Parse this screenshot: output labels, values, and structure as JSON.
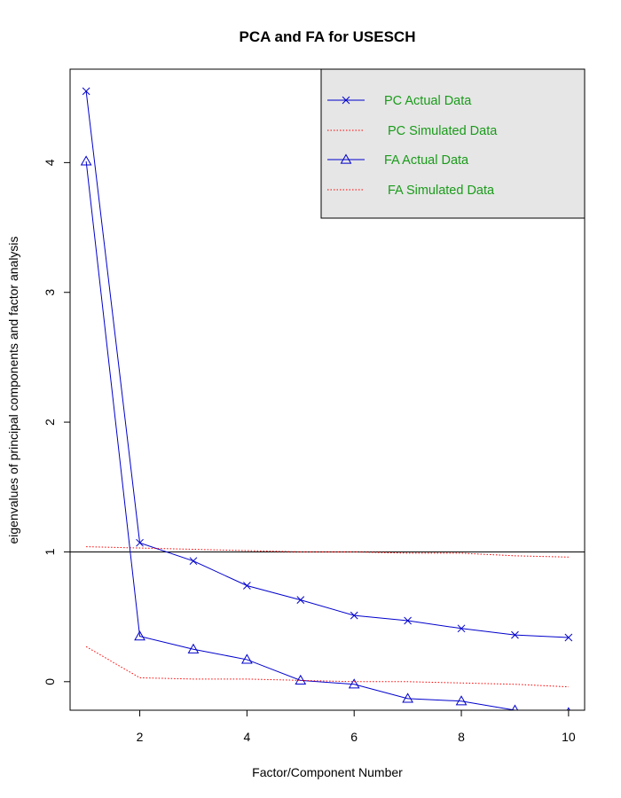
{
  "chart_data": {
    "type": "line",
    "title": "PCA and FA for USESCH",
    "xlabel": "Factor/Component Number",
    "ylabel": "eigenvalues of principal components and factor analysis",
    "xlim": [
      0.7,
      10.3
    ],
    "ylim": [
      -0.22,
      4.72
    ],
    "x_ticks": [
      "2",
      "4",
      "6",
      "8",
      "10"
    ],
    "y_ticks": [
      "0",
      "1",
      "2",
      "3",
      "4"
    ],
    "x": [
      1,
      2,
      3,
      4,
      5,
      6,
      7,
      8,
      9,
      10
    ],
    "reference_line": 1,
    "grid": false,
    "legend_position": "top-right",
    "series": [
      {
        "name": "PC  Actual Data",
        "color": "#0000cc",
        "line": "solid",
        "marker": "x",
        "values": [
          4.55,
          1.07,
          0.93,
          0.74,
          0.63,
          0.51,
          0.47,
          0.41,
          0.36,
          0.34
        ]
      },
      {
        "name": "PC  Simulated Data",
        "color": "#ff0000",
        "line": "dotted",
        "marker": "none",
        "values": [
          1.04,
          1.03,
          1.02,
          1.01,
          1.0,
          1.0,
          0.99,
          0.99,
          0.97,
          0.96
        ]
      },
      {
        "name": "FA  Actual Data",
        "color": "#0000cc",
        "line": "solid",
        "marker": "triangle",
        "values": [
          4.01,
          0.35,
          0.25,
          0.17,
          0.01,
          -0.02,
          -0.13,
          -0.15,
          -0.22,
          -0.24
        ]
      },
      {
        "name": "FA  Simulated Data",
        "color": "#ff0000",
        "line": "dotted",
        "marker": "none",
        "values": [
          0.27,
          0.03,
          0.02,
          0.02,
          0.01,
          0.0,
          0.0,
          -0.01,
          -0.02,
          -0.04
        ]
      }
    ],
    "legend": {
      "background": "#e6e6e6"
    }
  }
}
